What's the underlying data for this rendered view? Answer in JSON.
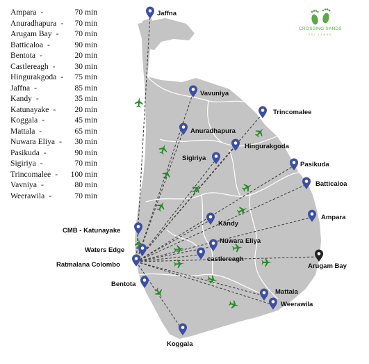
{
  "travel_times": [
    {
      "city": "Ampara",
      "sep": "-",
      "time": "70 min"
    },
    {
      "city": "Anuradhapura",
      "sep": "-",
      "time": "70 min"
    },
    {
      "city": "Arugam Bay",
      "sep": "-",
      "time": "70 min"
    },
    {
      "city": "Batticaloa",
      "sep": "-",
      "time": "90 min"
    },
    {
      "city": "Bentota",
      "sep": "-",
      "time": "20 min"
    },
    {
      "city": "Castlereagh",
      "sep": "-",
      "time": "30 min"
    },
    {
      "city": "Hingurakgoda",
      "sep": "-",
      "time": "75 min"
    },
    {
      "city": "Jaffna",
      "sep": "-",
      "time": "85 min"
    },
    {
      "city": "Kandy",
      "sep": "-",
      "time": "35 min"
    },
    {
      "city": "Katunayake",
      "sep": "-",
      "time": "20 min"
    },
    {
      "city": "Koggala",
      "sep": "-",
      "time": "45 min"
    },
    {
      "city": "Mattala",
      "sep": "-",
      "time": "65 min"
    },
    {
      "city": "Nuwara Eliya",
      "sep": "-",
      "time": "30 min"
    },
    {
      "city": "Pasikuda",
      "sep": "-",
      "time": "90 min"
    },
    {
      "city": "Sigiriya",
      "sep": "-",
      "time": "70 min"
    },
    {
      "city": "Trincomalee",
      "sep": "-",
      "time": "100 min"
    },
    {
      "city": "Vavniya",
      "sep": "-",
      "time": "80 min"
    },
    {
      "city": "Weerawila",
      "sep": "-",
      "time": "70 min"
    }
  ],
  "map_labels": {
    "jaffna": "Jaffna",
    "vavuniya": "Vavuniya",
    "trincomalee": "Trincomalee",
    "anuradhapura": "Anuradhapura",
    "sigiriya": "Sigiriya",
    "hingurakgoda": "Hingurakgoda",
    "pasikuda": "Pasikuda",
    "batticaloa": "Batticaloa",
    "ampara": "Ampara",
    "kandy": "Kandy",
    "nuwara_eliya": "Nuwara Eliya",
    "castlereagh": "castlereagh",
    "arugam_bay": "Arugam Bay",
    "mattala": "Mattala",
    "weerawila": "Weerawila",
    "koggala": "Koggala",
    "katunayake": "CMB - Katunayake",
    "waters_edge": "Waters Edge",
    "ratmalana": "Ratmalana Colombo",
    "bentota": "Bentota"
  },
  "logo": {
    "text": "CROSSING SANDS",
    "subtitle": "SRI LANKA"
  },
  "colors": {
    "land": "#c4c4c4",
    "pin": "#3d4fa3",
    "pin_alt": "#222222",
    "plane": "#2a8a2a",
    "route": "#444444",
    "logo": "#5aa84a"
  },
  "icons": {
    "pin": "map-pin-icon",
    "plane": "airplane-icon",
    "logo": "footprints-icon"
  }
}
